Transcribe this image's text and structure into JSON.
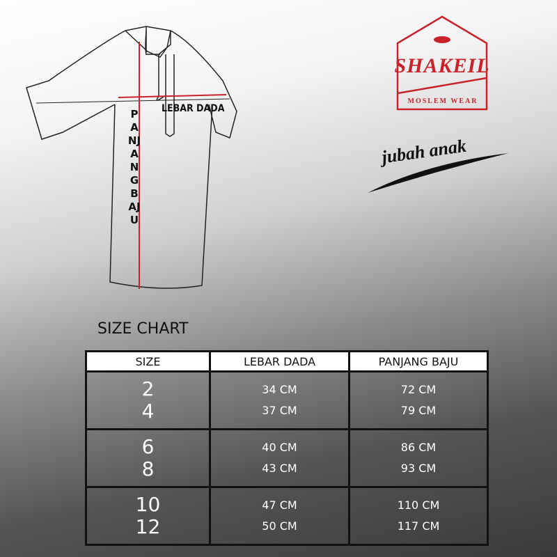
{
  "illustration": {
    "width_label": "LEBAR DADA",
    "length_label": "PANJANG BAJU"
  },
  "brand": {
    "name": "SHAKEIL",
    "tagline": "MOSLEM WEAR",
    "color": "#c8232b"
  },
  "product": {
    "name": "jubah anak"
  },
  "size_chart": {
    "title": "SIZE CHART",
    "headers": [
      "SIZE",
      "LEBAR DADA",
      "PANJANG BAJU"
    ],
    "groups": [
      {
        "sizes": [
          "2",
          "4"
        ],
        "lebar": [
          "34 CM",
          "37 CM"
        ],
        "panjang": [
          "72 CM",
          "79 CM"
        ]
      },
      {
        "sizes": [
          "6",
          "8"
        ],
        "lebar": [
          "40 CM",
          "43 CM"
        ],
        "panjang": [
          "86 CM",
          "93 CM"
        ]
      },
      {
        "sizes": [
          "10",
          "12"
        ],
        "lebar": [
          "47 CM",
          "50 CM"
        ],
        "panjang": [
          "110 CM",
          "117 CM"
        ]
      }
    ]
  }
}
